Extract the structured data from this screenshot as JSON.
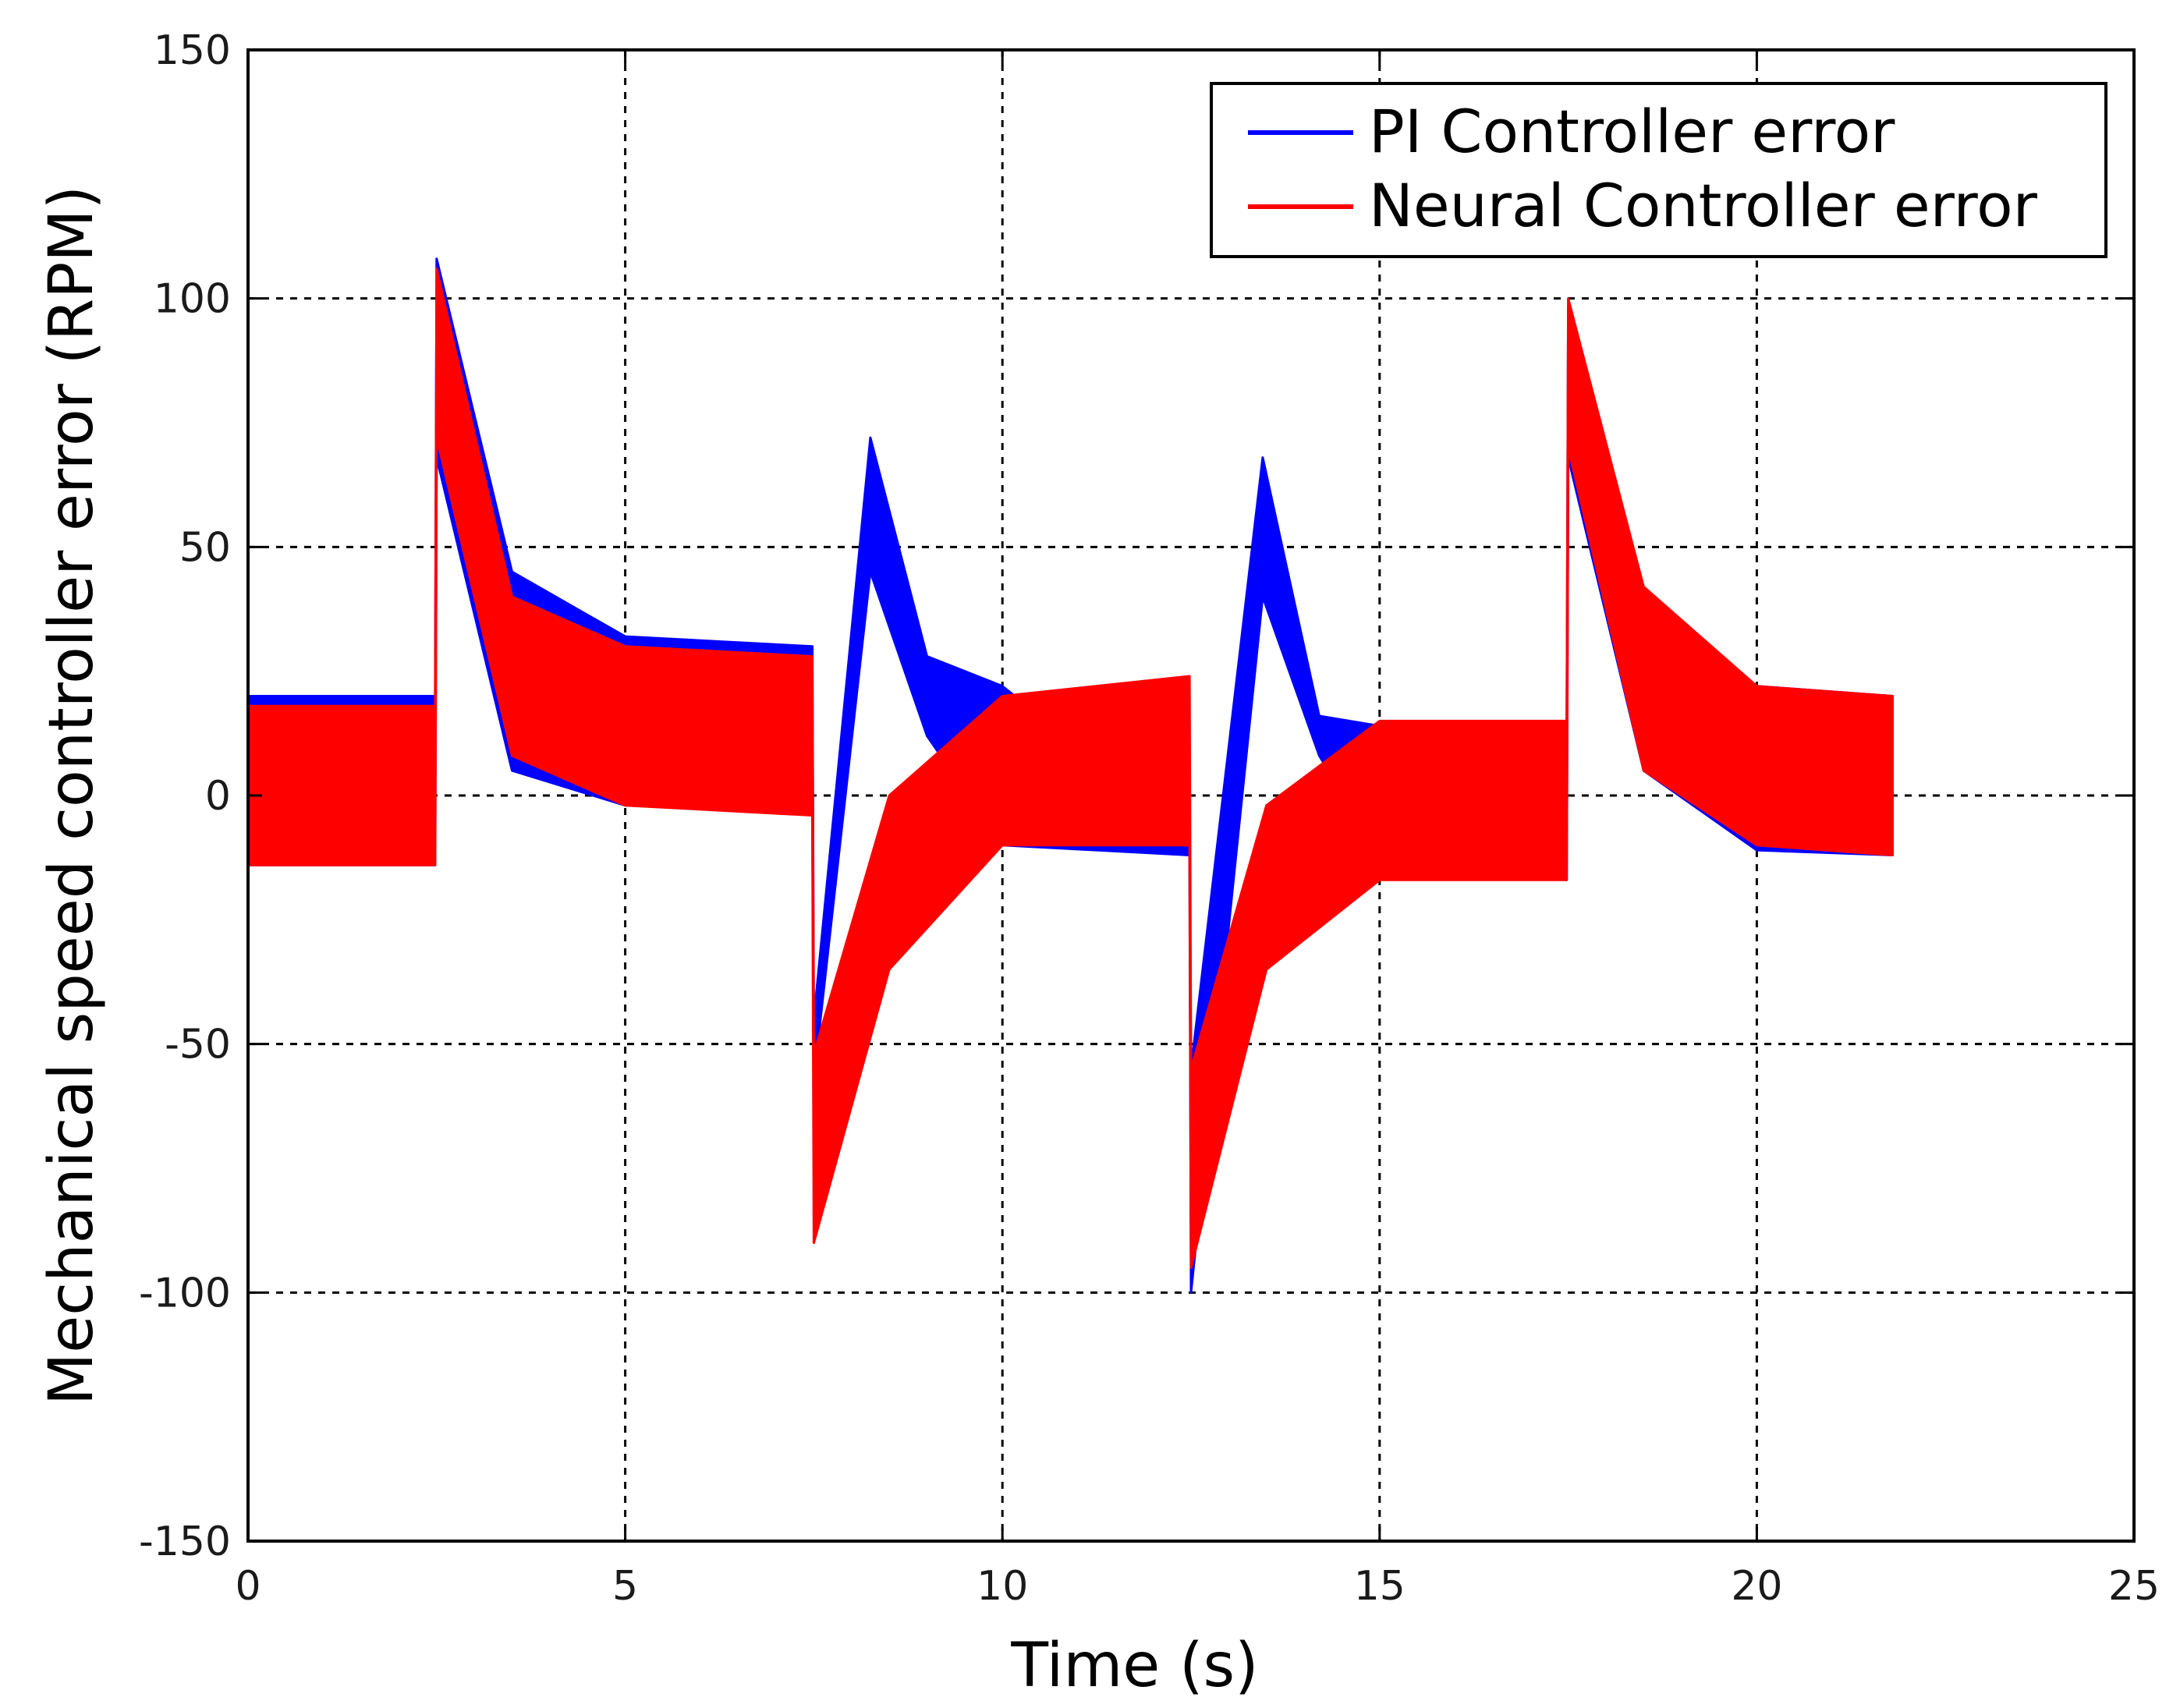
{
  "chart_data": {
    "type": "line",
    "xlabel": "Time (s)",
    "ylabel": "Mechanical speed controller error (RPM)",
    "xlim": [
      0,
      25
    ],
    "ylim": [
      -150,
      150
    ],
    "xticks": [
      0,
      5,
      10,
      15,
      20,
      25
    ],
    "yticks": [
      -150,
      -100,
      -50,
      0,
      50,
      100,
      150
    ],
    "grid": true,
    "legend_position": "top-right",
    "series": [
      {
        "name": "PI Controller error",
        "color": "#0000ff",
        "note_shape": "oscillating band; envelope shown as lower/upper pairs",
        "envelope": [
          {
            "x": 0.0,
            "lower": -14,
            "upper": 20
          },
          {
            "x": 2.48,
            "lower": -14,
            "upper": 20
          },
          {
            "x": 2.5,
            "lower": 68,
            "upper": 108
          },
          {
            "x": 3.5,
            "lower": 5,
            "upper": 45
          },
          {
            "x": 5.0,
            "lower": -2,
            "upper": 32
          },
          {
            "x": 7.48,
            "lower": -3,
            "upper": 30
          },
          {
            "x": 7.5,
            "lower": -57,
            "upper": -45
          },
          {
            "x": 8.25,
            "lower": 45,
            "upper": 72
          },
          {
            "x": 9.0,
            "lower": 12,
            "upper": 28
          },
          {
            "x": 10.0,
            "lower": -10,
            "upper": 22
          },
          {
            "x": 12.48,
            "lower": -12,
            "upper": -8
          },
          {
            "x": 12.5,
            "lower": -100,
            "upper": -55
          },
          {
            "x": 13.45,
            "lower": 40,
            "upper": 68
          },
          {
            "x": 14.2,
            "lower": 8,
            "upper": 16
          },
          {
            "x": 15.0,
            "lower": -12,
            "upper": 14
          },
          {
            "x": 17.48,
            "lower": -17,
            "upper": 14
          },
          {
            "x": 17.5,
            "lower": 68,
            "upper": 98
          },
          {
            "x": 18.5,
            "lower": 5,
            "upper": 40
          },
          {
            "x": 20.0,
            "lower": -11,
            "upper": 22
          },
          {
            "x": 21.8,
            "lower": -12,
            "upper": 20
          }
        ]
      },
      {
        "name": "Neural Controller error",
        "color": "#ff0000",
        "envelope": [
          {
            "x": 0.0,
            "lower": -14,
            "upper": 18
          },
          {
            "x": 2.48,
            "lower": -14,
            "upper": 18
          },
          {
            "x": 2.5,
            "lower": 72,
            "upper": 106
          },
          {
            "x": 3.5,
            "lower": 8,
            "upper": 40
          },
          {
            "x": 5.0,
            "lower": -2,
            "upper": 30
          },
          {
            "x": 7.48,
            "lower": -4,
            "upper": 28
          },
          {
            "x": 7.5,
            "lower": -90,
            "upper": -52
          },
          {
            "x": 8.5,
            "lower": -35,
            "upper": 0
          },
          {
            "x": 10.0,
            "lower": -10,
            "upper": 20
          },
          {
            "x": 12.48,
            "lower": -10,
            "upper": 24
          },
          {
            "x": 12.5,
            "lower": -95,
            "upper": -55
          },
          {
            "x": 13.5,
            "lower": -35,
            "upper": -2
          },
          {
            "x": 15.0,
            "lower": -17,
            "upper": 15
          },
          {
            "x": 17.48,
            "lower": -17,
            "upper": 15
          },
          {
            "x": 17.5,
            "lower": 70,
            "upper": 100
          },
          {
            "x": 18.5,
            "lower": 5,
            "upper": 42
          },
          {
            "x": 20.0,
            "lower": -10,
            "upper": 22
          },
          {
            "x": 21.8,
            "lower": -12,
            "upper": 20
          }
        ]
      }
    ]
  }
}
